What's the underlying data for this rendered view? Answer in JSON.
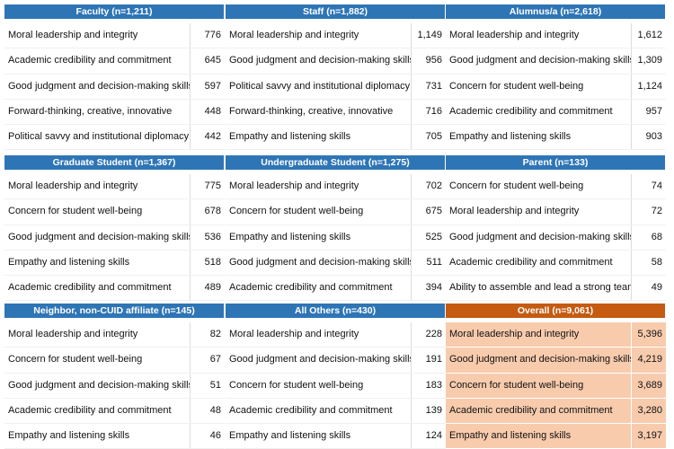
{
  "panels": [
    {
      "title": "Faculty (n=1,211)",
      "rows": [
        [
          "Moral leadership and integrity",
          "776"
        ],
        [
          "Academic credibility and commitment",
          "645"
        ],
        [
          "Good judgment and decision-making skills",
          "597"
        ],
        [
          "Forward-thinking, creative, innovative",
          "448"
        ],
        [
          "Political savvy and institutional diplomacy",
          "442"
        ]
      ]
    },
    {
      "title": "Staff (n=1,882)",
      "rows": [
        [
          "Moral leadership and integrity",
          "1,149"
        ],
        [
          "Good judgment and decision-making skills",
          "956"
        ],
        [
          "Political savvy and institutional diplomacy",
          "731"
        ],
        [
          "Forward-thinking, creative, innovative",
          "716"
        ],
        [
          "Empathy and listening skills",
          "705"
        ]
      ]
    },
    {
      "title": "Alumnus/a (n=2,618)",
      "rows": [
        [
          "Moral leadership and integrity",
          "1,612"
        ],
        [
          "Good judgment and decision-making skills",
          "1,309"
        ],
        [
          "Concern for student well-being",
          "1,124"
        ],
        [
          "Academic credibility and commitment",
          "957"
        ],
        [
          "Empathy and listening skills",
          "903"
        ]
      ]
    },
    {
      "title": "Graduate Student (n=1,367)",
      "rows": [
        [
          "Moral leadership and integrity",
          "775"
        ],
        [
          "Concern for student well-being",
          "678"
        ],
        [
          "Good judgment and decision-making skills",
          "536"
        ],
        [
          "Empathy and listening skills",
          "518"
        ],
        [
          "Academic credibility and commitment",
          "489"
        ]
      ]
    },
    {
      "title": "Undergraduate Student (n=1,275)",
      "rows": [
        [
          "Moral leadership and integrity",
          "702"
        ],
        [
          "Concern for student well-being",
          "675"
        ],
        [
          "Empathy and listening skills",
          "525"
        ],
        [
          "Good judgment and decision-making skills",
          "511"
        ],
        [
          "Academic credibility and commitment",
          "394"
        ]
      ]
    },
    {
      "title": "Parent (n=133)",
      "rows": [
        [
          "Concern for student well-being",
          "74"
        ],
        [
          "Moral leadership and integrity",
          "72"
        ],
        [
          "Good judgment and decision-making skills",
          "68"
        ],
        [
          "Academic credibility and commitment",
          "58"
        ],
        [
          "Ability to assemble and lead a strong team",
          "49"
        ]
      ]
    },
    {
      "title": "Neighbor, non-CUID affiliate (n=145)",
      "rows": [
        [
          "Moral leadership and integrity",
          "82"
        ],
        [
          "Concern for student well-being",
          "67"
        ],
        [
          "Good judgment and decision-making skills",
          "51"
        ],
        [
          "Academic credibility and commitment",
          "48"
        ],
        [
          "Empathy and listening skills",
          "46"
        ]
      ]
    },
    {
      "title": "All Others (n=430)",
      "rows": [
        [
          "Moral leadership and integrity",
          "228"
        ],
        [
          "Good judgment and decision-making skills",
          "191"
        ],
        [
          "Concern for student well-being",
          "183"
        ],
        [
          "Academic credibility and commitment",
          "139"
        ],
        [
          "Empathy and listening skills",
          "124"
        ]
      ]
    },
    {
      "title": "Overall (n=9,061)",
      "rows": [
        [
          "Moral leadership and integrity",
          "5,396"
        ],
        [
          "Good judgment and decision-making skills",
          "4,219"
        ],
        [
          "Concern for student well-being",
          "3,689"
        ],
        [
          "Academic credibility and commitment",
          "3,280"
        ],
        [
          "Empathy and listening skills",
          "3,197"
        ]
      ]
    }
  ]
}
